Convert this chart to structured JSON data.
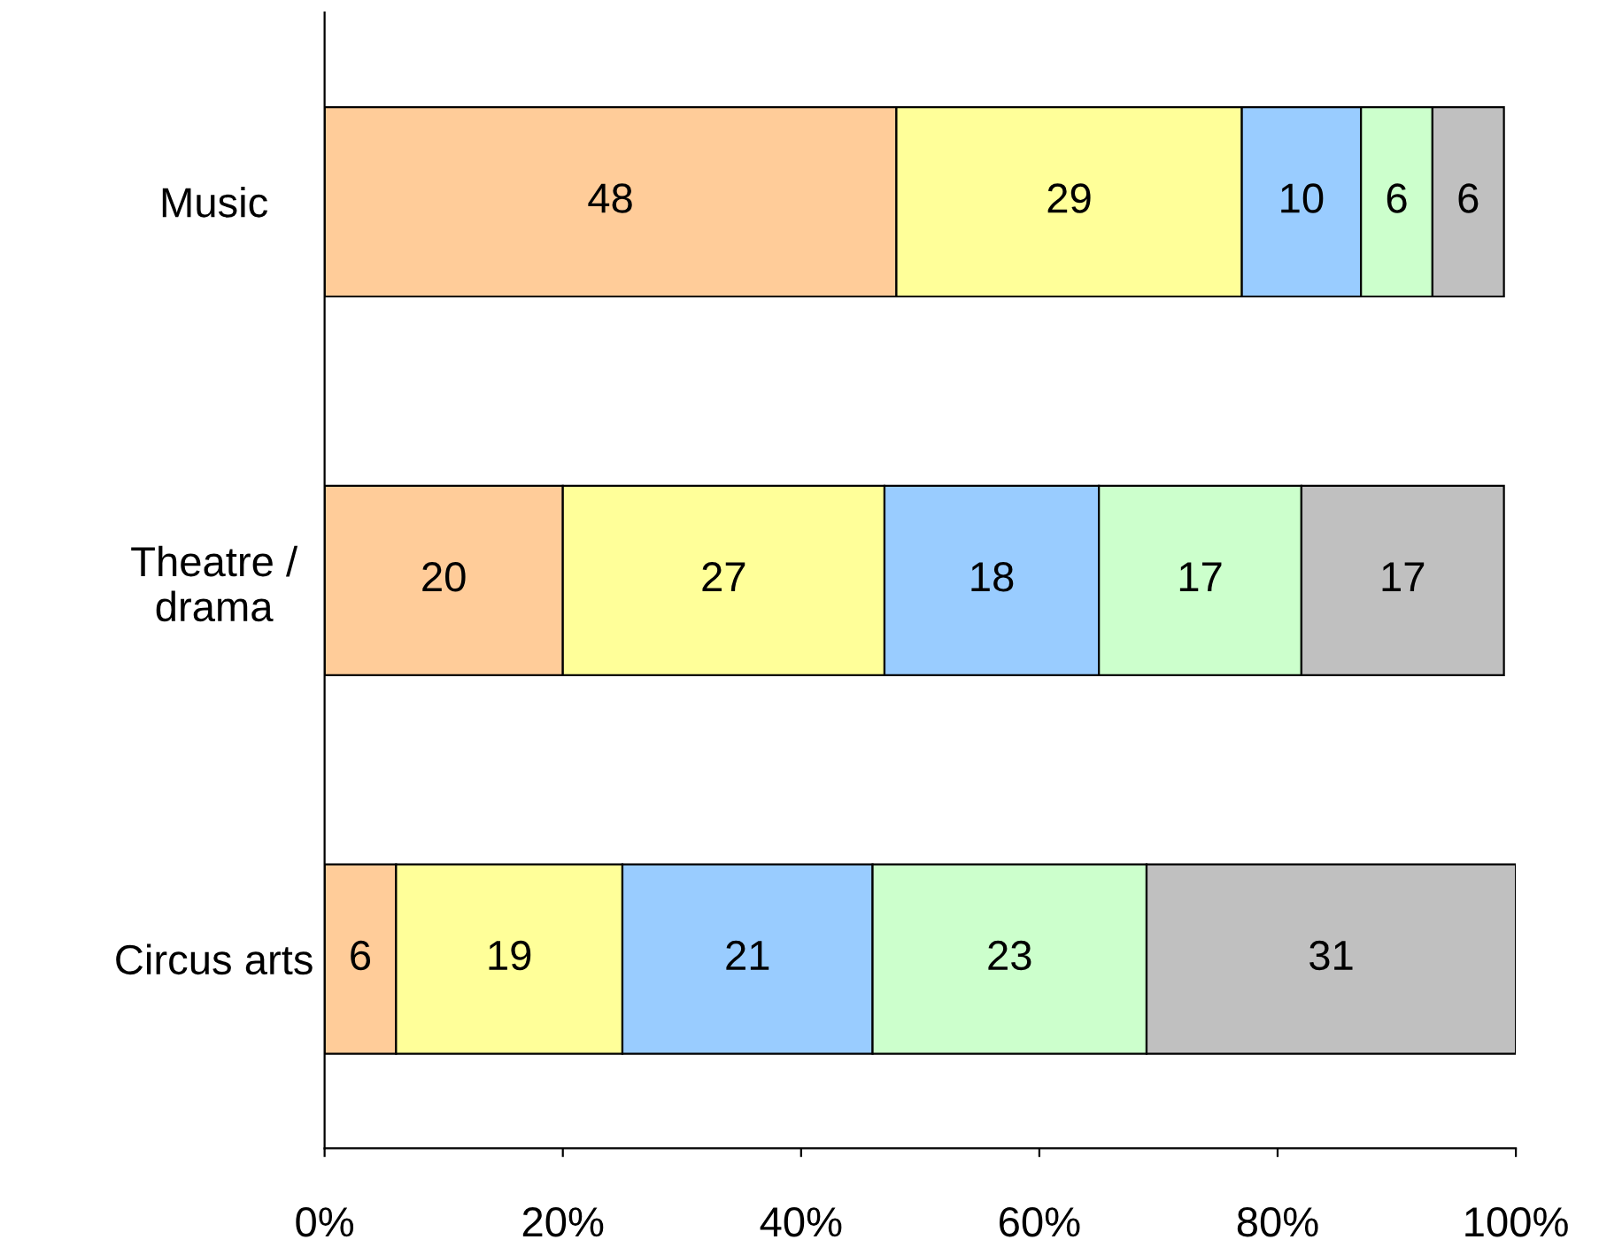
{
  "chart_data": {
    "type": "bar",
    "orientation": "horizontal",
    "stacked": true,
    "data_labels": true,
    "grid": false,
    "legend": false,
    "categories": [
      "Music",
      "Theatre /\ndrama",
      "Circus arts"
    ],
    "series": [
      {
        "color": "#ffcc99",
        "values": [
          48,
          20,
          6
        ]
      },
      {
        "color": "#ffff99",
        "values": [
          29,
          27,
          19
        ]
      },
      {
        "color": "#99ccff",
        "values": [
          10,
          18,
          21
        ]
      },
      {
        "color": "#ccffcc",
        "values": [
          6,
          17,
          23
        ]
      },
      {
        "color": "#c0c0c0",
        "values": [
          6,
          17,
          31
        ]
      }
    ],
    "xlim": [
      0,
      100
    ],
    "xticks": [
      {
        "value": 0,
        "label": "0%"
      },
      {
        "value": 20,
        "label": "20%"
      },
      {
        "value": 40,
        "label": "40%"
      },
      {
        "value": 60,
        "label": "60%"
      },
      {
        "value": 80,
        "label": "80%"
      },
      {
        "value": 100,
        "label": "100%"
      }
    ]
  }
}
